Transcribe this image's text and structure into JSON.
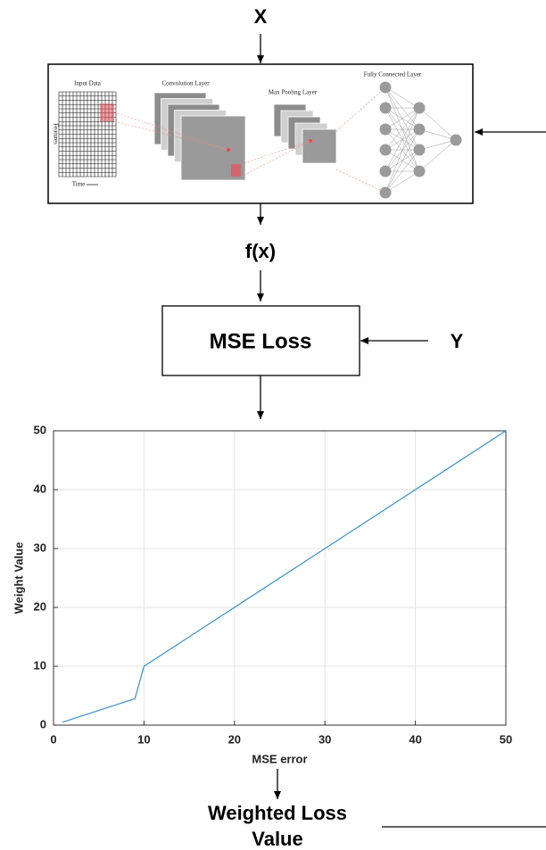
{
  "diagram": {
    "input_label": "X",
    "cnn": {
      "input_data": "Input Data",
      "features": "Features",
      "time": "Time",
      "convolution": "Convolution Layer",
      "max_pooling": "Max Pooling Layer",
      "fully_connected": "Fully Connected Layer"
    },
    "cnn_output_label": "f(x)",
    "loss_box": "MSE Loss",
    "target_label": "Y",
    "output_label": [
      "Weighted Loss",
      "Value"
    ]
  },
  "chart_data": {
    "type": "line",
    "x": [
      1,
      9,
      10,
      50
    ],
    "values": [
      0.5,
      4.5,
      10,
      50
    ],
    "color": "#3a8fc8",
    "xlabel": "MSE error",
    "ylabel": "Weight Value",
    "xlim": [
      0,
      50
    ],
    "ylim": [
      0,
      50
    ],
    "xticks": [
      0,
      10,
      20,
      30,
      40,
      50
    ],
    "yticks": [
      0,
      10,
      20,
      30,
      40,
      50
    ],
    "grid": true
  }
}
